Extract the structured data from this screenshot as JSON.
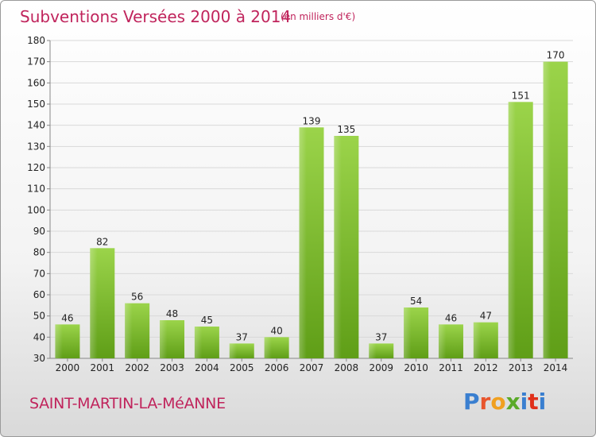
{
  "header": {
    "title": "Subventions Versées 2000 à 2014",
    "unit": "(en milliers d'€)"
  },
  "footer": {
    "commune": "SAINT-MARTIN-LA-MéANNE",
    "logo_text": "Proxiti",
    "logo_colors": [
      "#3a7fd0",
      "#e8552d",
      "#f0a020",
      "#5aaa28",
      "#3a7fd0",
      "#e0301a",
      "#3a7fd0"
    ]
  },
  "colors": {
    "title": "#c0245c",
    "bar_light": "#9bd44a",
    "bar_dark": "#5f9e17",
    "grid": "#d9d9d9",
    "axis_text": "#222222"
  },
  "chart_data": {
    "type": "bar",
    "categories": [
      "2000",
      "2001",
      "2002",
      "2003",
      "2004",
      "2005",
      "2006",
      "2007",
      "2008",
      "2009",
      "2010",
      "2011",
      "2012",
      "2013",
      "2014"
    ],
    "values": [
      46,
      82,
      56,
      48,
      45,
      37,
      40,
      139,
      135,
      37,
      54,
      46,
      47,
      151,
      170
    ],
    "ylim": [
      30,
      180
    ],
    "yticks": [
      30,
      40,
      50,
      60,
      70,
      80,
      90,
      100,
      110,
      120,
      130,
      140,
      150,
      160,
      170,
      180
    ],
    "grid": true,
    "data_labels": true
  }
}
